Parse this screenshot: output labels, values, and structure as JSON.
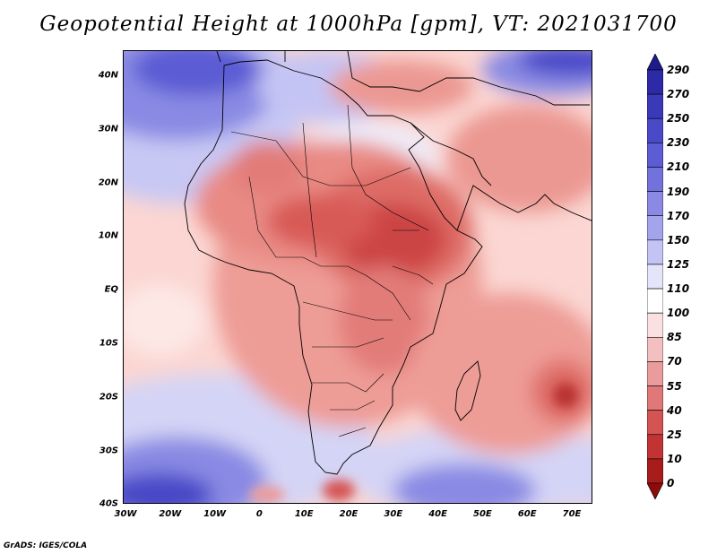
{
  "title": "Geopotential Height at 1000hPa [gpm], VT: 2021031700",
  "credit": "GrADS: IGES/COLA",
  "lat_labels": [
    "40N",
    "30N",
    "20N",
    "10N",
    "EQ",
    "10S",
    "20S",
    "30S",
    "40S"
  ],
  "lon_labels": [
    "30W",
    "20W",
    "10W",
    "0",
    "10E",
    "20E",
    "30E",
    "40E",
    "50E",
    "60E",
    "70E"
  ],
  "colorbar": {
    "labels": [
      "290",
      "270",
      "250",
      "230",
      "210",
      "190",
      "170",
      "150",
      "125",
      "110",
      "100",
      "85",
      "70",
      "55",
      "40",
      "25",
      "10",
      "0"
    ],
    "colors": [
      "#1e1a8c",
      "#2c2aa6",
      "#3a3ab8",
      "#4a4ac8",
      "#5c5cd4",
      "#7272dc",
      "#8a8ae4",
      "#a4a4ec",
      "#c4c4f4",
      "#e4e4fa",
      "#ffffff",
      "#fae0e0",
      "#f2c0c0",
      "#ea9c9c",
      "#e07878",
      "#d45454",
      "#c23434",
      "#a81c1c",
      "#8c0c0c"
    ]
  },
  "colors": {
    "land_warm": "#e98a84",
    "ocean_light": "#fbd6d2",
    "cold_blue": "#6a66d8",
    "hot_core": "#c23434"
  }
}
